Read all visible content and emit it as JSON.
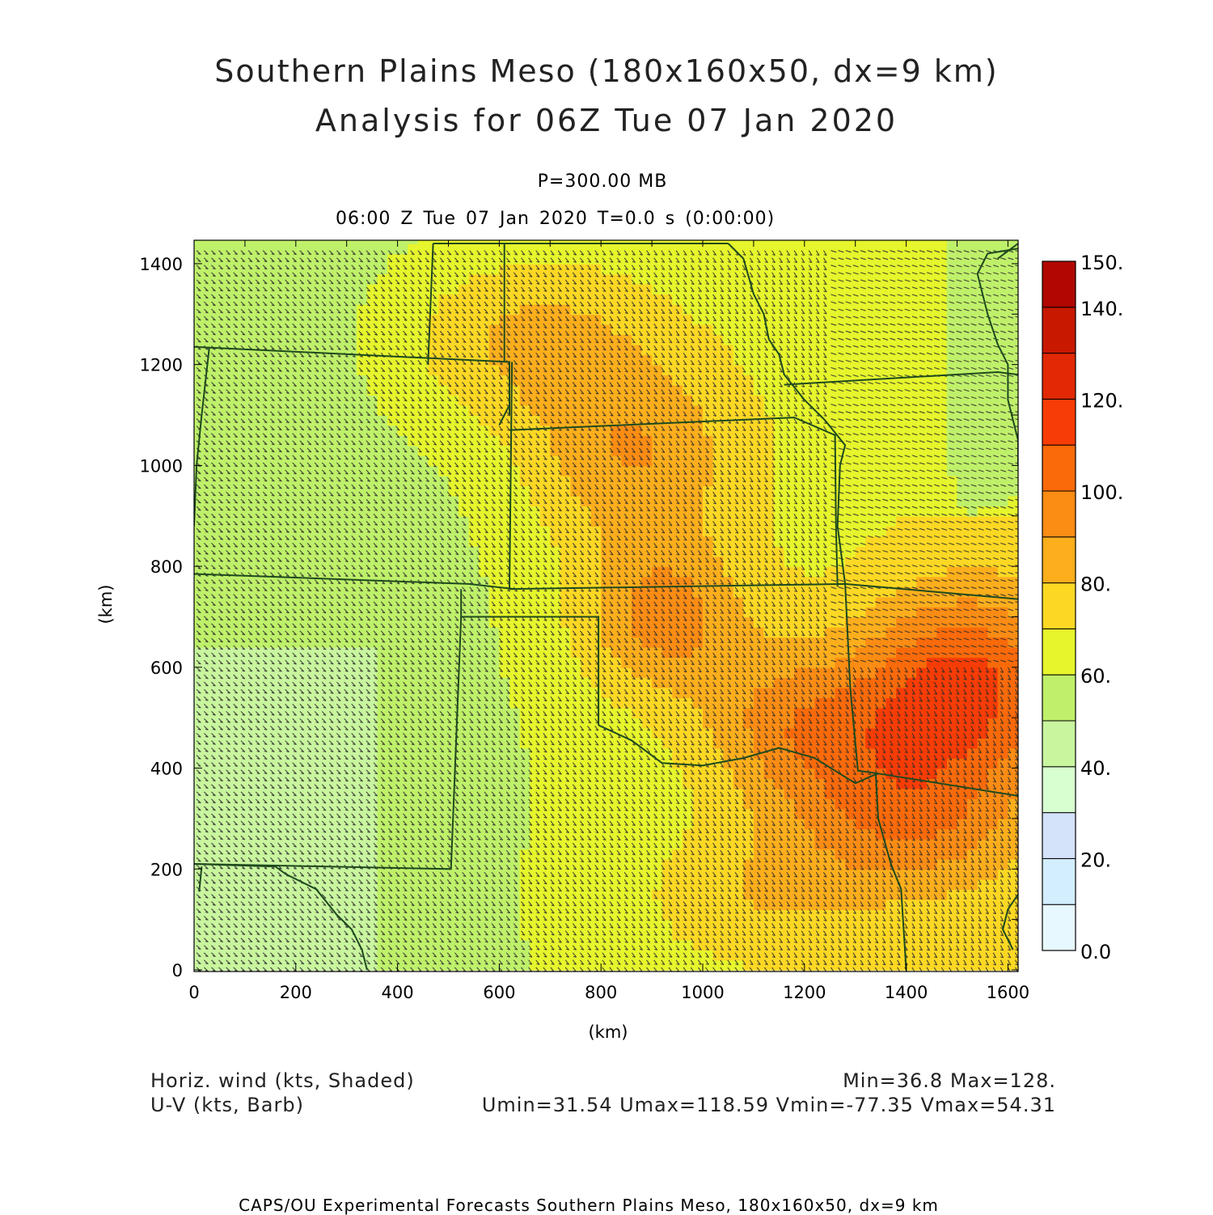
{
  "title": {
    "line1": "Southern Plains Meso (180x160x50, dx=9 km)",
    "line2": "Analysis for 06Z Tue 07 Jan 2020"
  },
  "level_label": "P=300.00 MB",
  "time_label": "06:00 Z Tue 07 Jan 2020   T=0.0 s (0:00:00)",
  "axes": {
    "x_label": "(km)",
    "y_label": "(km)",
    "x_ticks": [
      "0",
      "200",
      "400",
      "600",
      "800",
      "1000",
      "1200",
      "1400",
      "1600"
    ],
    "y_ticks": [
      "0",
      "200",
      "400",
      "600",
      "800",
      "1000",
      "1200",
      "1400"
    ],
    "x_range": [
      0,
      1620
    ],
    "y_range": [
      0,
      1440
    ]
  },
  "colorbar": {
    "labels": [
      "0.0",
      "20.",
      "40.",
      "60.",
      "80.",
      "100.",
      "120.",
      "140.",
      "150."
    ],
    "bands": [
      {
        "from": 0,
        "to": 10,
        "color": "#e8f8ff"
      },
      {
        "from": 10,
        "to": 20,
        "color": "#d2eeff"
      },
      {
        "from": 20,
        "to": 30,
        "color": "#d4e2fa"
      },
      {
        "from": 30,
        "to": 40,
        "color": "#d8ffd0"
      },
      {
        "from": 40,
        "to": 50,
        "color": "#c8f59e"
      },
      {
        "from": 50,
        "to": 60,
        "color": "#bff06a"
      },
      {
        "from": 60,
        "to": 70,
        "color": "#e6f52c"
      },
      {
        "from": 70,
        "to": 80,
        "color": "#fcd824"
      },
      {
        "from": 80,
        "to": 90,
        "color": "#fcae1c"
      },
      {
        "from": 90,
        "to": 100,
        "color": "#fb8c14"
      },
      {
        "from": 100,
        "to": 110,
        "color": "#fa6a0a"
      },
      {
        "from": 110,
        "to": 120,
        "color": "#f73c06"
      },
      {
        "from": 120,
        "to": 130,
        "color": "#e22804"
      },
      {
        "from": 130,
        "to": 140,
        "color": "#c81800"
      },
      {
        "from": 140,
        "to": 150,
        "color": "#b00800"
      }
    ]
  },
  "footer": {
    "field_shaded": "Horiz. wind (kts, Shaded)",
    "field_barb": "U-V (kts, Barb)",
    "minmax": "Min=36.8 Max=128.",
    "uv_minmax": "Umin=31.54 Umax=118.59 Vmin=-77.35 Vmax=54.31",
    "credit": "CAPS/OU Experimental Forecasts  Southern Plains Meso, 180x160x50, dx=9 km"
  },
  "colors": {
    "border_lines": "#1e4a1e",
    "barbs": "#2a2a2a",
    "frame": "#000000"
  }
}
